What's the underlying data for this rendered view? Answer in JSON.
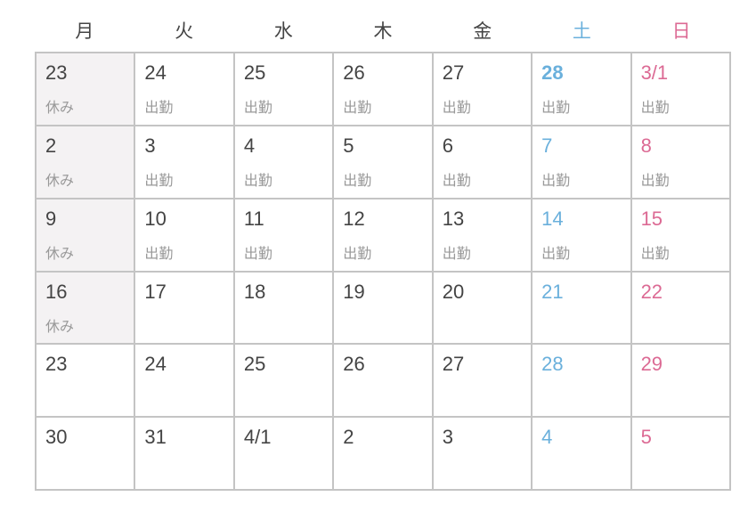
{
  "weekdays": [
    "月",
    "火",
    "水",
    "木",
    "金",
    "土",
    "日"
  ],
  "colors": {
    "saturday": "#6ab0dc",
    "sunday": "#dc6a94",
    "off_bg": "#f4f2f3"
  },
  "today": "28",
  "weeks": [
    [
      {
        "day": "23",
        "status": "休み"
      },
      {
        "day": "24",
        "status": "出勤"
      },
      {
        "day": "25",
        "status": "出勤"
      },
      {
        "day": "26",
        "status": "出勤"
      },
      {
        "day": "27",
        "status": "出勤"
      },
      {
        "day": "28",
        "status": "出勤"
      },
      {
        "day": "3/1",
        "status": "出勤"
      }
    ],
    [
      {
        "day": "2",
        "status": "休み"
      },
      {
        "day": "3",
        "status": "出勤"
      },
      {
        "day": "4",
        "status": "出勤"
      },
      {
        "day": "5",
        "status": "出勤"
      },
      {
        "day": "6",
        "status": "出勤"
      },
      {
        "day": "7",
        "status": "出勤"
      },
      {
        "day": "8",
        "status": "出勤"
      }
    ],
    [
      {
        "day": "9",
        "status": "休み"
      },
      {
        "day": "10",
        "status": "出勤"
      },
      {
        "day": "11",
        "status": "出勤"
      },
      {
        "day": "12",
        "status": "出勤"
      },
      {
        "day": "13",
        "status": "出勤"
      },
      {
        "day": "14",
        "status": "出勤"
      },
      {
        "day": "15",
        "status": "出勤"
      }
    ],
    [
      {
        "day": "16",
        "status": "休み"
      },
      {
        "day": "17",
        "status": ""
      },
      {
        "day": "18",
        "status": ""
      },
      {
        "day": "19",
        "status": ""
      },
      {
        "day": "20",
        "status": ""
      },
      {
        "day": "21",
        "status": ""
      },
      {
        "day": "22",
        "status": ""
      }
    ],
    [
      {
        "day": "23",
        "status": ""
      },
      {
        "day": "24",
        "status": ""
      },
      {
        "day": "25",
        "status": ""
      },
      {
        "day": "26",
        "status": ""
      },
      {
        "day": "27",
        "status": ""
      },
      {
        "day": "28",
        "status": ""
      },
      {
        "day": "29",
        "status": ""
      }
    ],
    [
      {
        "day": "30",
        "status": ""
      },
      {
        "day": "31",
        "status": ""
      },
      {
        "day": "4/1",
        "status": ""
      },
      {
        "day": "2",
        "status": ""
      },
      {
        "day": "3",
        "status": ""
      },
      {
        "day": "4",
        "status": ""
      },
      {
        "day": "5",
        "status": ""
      }
    ]
  ]
}
